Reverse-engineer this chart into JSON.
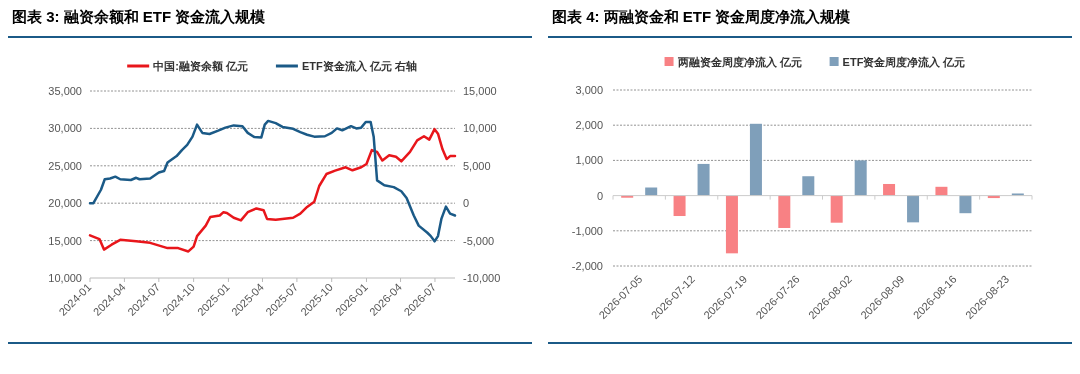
{
  "chart_data": [
    {
      "type": "line",
      "title": "图表 3: 融资余额和 ETF 资金流入规模",
      "legend": "top",
      "grid": "y",
      "xlim": [
        "2024-01-01",
        "2026-08-23"
      ],
      "xticks": [
        "2024-01",
        "2024-04",
        "2024-07",
        "2024-10",
        "2025-01",
        "2025-04",
        "2025-07",
        "2025-10",
        "2026-01",
        "2026-04",
        "2026-07"
      ],
      "ylim": [
        10000,
        35000
      ],
      "yticks": [
        {
          "value": 10000,
          "label": "10,000"
        },
        {
          "value": 15000,
          "label": "15,000"
        },
        {
          "value": 20000,
          "label": "20,000"
        },
        {
          "value": 25000,
          "label": "25,000"
        },
        {
          "value": 30000,
          "label": "30,000"
        },
        {
          "value": 35000,
          "label": "35,000"
        }
      ],
      "y2lim": [
        -10000,
        15000
      ],
      "y2ticks": [
        {
          "value": -10000,
          "label": "-10,000"
        },
        {
          "value": -5000,
          "label": "-5,000"
        },
        {
          "value": 0,
          "label": "0"
        },
        {
          "value": 5000,
          "label": "5,000"
        },
        {
          "value": 10000,
          "label": "10,000"
        },
        {
          "value": 15000,
          "label": "15,000"
        }
      ],
      "series": [
        {
          "name": "中国:融资余额 亿元",
          "color": "#e8161b",
          "x": [
            "2024-01-01",
            "2024-01-26",
            "2024-02-07",
            "2024-02-27",
            "2024-03-21",
            "2024-05-02",
            "2024-06-08",
            "2024-07-24",
            "2024-08-21",
            "2024-09-17",
            "2024-10-01",
            "2024-10-10",
            "2024-11-02",
            "2024-11-14",
            "2024-12-09",
            "2024-12-19",
            "2024-12-28",
            "2025-01-15",
            "2025-02-03",
            "2025-02-21",
            "2025-03-16",
            "2025-04-04",
            "2025-04-13",
            "2025-05-06",
            "2025-06-21",
            "2025-07-10",
            "2025-07-28",
            "2025-08-16",
            "2025-08-29",
            "2025-09-17",
            "2025-10-10",
            "2025-11-07",
            "2025-11-25",
            "2025-12-18",
            "2026-01-01",
            "2026-01-15",
            "2026-01-29",
            "2026-02-12",
            "2026-03-02",
            "2026-03-20",
            "2026-04-03",
            "2026-04-26",
            "2026-05-15",
            "2026-06-02",
            "2026-06-16",
            "2026-06-30",
            "2026-07-09",
            "2026-07-21",
            "2026-08-01",
            "2026-08-10",
            "2026-08-23"
          ],
          "values": [
            15700,
            15200,
            13800,
            14450,
            15100,
            14900,
            14700,
            14000,
            14000,
            13550,
            14200,
            15600,
            17000,
            18150,
            18350,
            18800,
            18700,
            18050,
            17700,
            18800,
            19300,
            19050,
            17900,
            17800,
            18050,
            18600,
            19500,
            20200,
            22300,
            23900,
            24350,
            24800,
            24400,
            24800,
            25250,
            27100,
            26850,
            25700,
            26400,
            26200,
            25600,
            26850,
            28400,
            28950,
            28500,
            29900,
            29300,
            27200,
            25900,
            26300,
            26300
          ]
        },
        {
          "name": "ETF资金流入 亿元 右轴",
          "color": "#1b5a87",
          "axis": "y2",
          "x": [
            "2024-01-01",
            "2024-01-10",
            "2024-01-30",
            "2024-02-09",
            "2024-02-23",
            "2024-03-08",
            "2024-03-21",
            "2024-04-18",
            "2024-05-02",
            "2024-05-11",
            "2024-06-08",
            "2024-07-01",
            "2024-07-15",
            "2024-07-24",
            "2024-08-17",
            "2024-08-31",
            "2024-09-14",
            "2024-09-28",
            "2024-10-10",
            "2024-10-24",
            "2024-11-12",
            "2024-12-05",
            "2024-12-24",
            "2025-01-15",
            "2025-02-07",
            "2025-02-21",
            "2025-03-10",
            "2025-03-29",
            "2025-04-07",
            "2025-04-16",
            "2025-05-06",
            "2025-05-24",
            "2025-06-21",
            "2025-07-10",
            "2025-07-28",
            "2025-08-16",
            "2025-09-13",
            "2025-10-01",
            "2025-10-15",
            "2025-10-29",
            "2025-11-21",
            "2025-12-05",
            "2025-12-18",
            "2025-12-30",
            "2026-01-12",
            "2026-01-20",
            "2026-01-29",
            "2026-02-17",
            "2026-03-14",
            "2026-04-03",
            "2026-04-17",
            "2026-05-06",
            "2026-05-19",
            "2026-06-11",
            "2026-06-20",
            "2026-06-30",
            "2026-07-09",
            "2026-07-18",
            "2026-07-30",
            "2026-08-10",
            "2026-08-23"
          ],
          "values": [
            0,
            0,
            1800,
            3200,
            3300,
            3550,
            3200,
            3100,
            3400,
            3200,
            3300,
            4100,
            4300,
            5450,
            6300,
            7100,
            7800,
            8900,
            10500,
            9400,
            9250,
            9700,
            10100,
            10400,
            10300,
            9400,
            8850,
            8800,
            10500,
            11000,
            10700,
            10200,
            9950,
            9500,
            9150,
            8900,
            8950,
            9400,
            10000,
            9750,
            10300,
            10000,
            10100,
            10850,
            10850,
            8900,
            3050,
            2400,
            2150,
            1600,
            700,
            -1650,
            -3000,
            -3950,
            -4400,
            -5100,
            -4400,
            -2100,
            -450,
            -1400,
            -1650
          ]
        }
      ]
    },
    {
      "type": "bar",
      "title": "图表 4: 两融资金和 ETF 资金周度净流入规模",
      "legend": "top",
      "grid": "y",
      "categories": [
        "2026-07-05",
        "2026-07-12",
        "2026-07-19",
        "2026-07-26",
        "2026-08-02",
        "2026-08-09",
        "2026-08-16",
        "2026-08-23"
      ],
      "ylim": [
        -2000,
        3000
      ],
      "yticks": [
        {
          "value": -2000,
          "label": "-2,000"
        },
        {
          "value": -1000,
          "label": "-1,000"
        },
        {
          "value": 0,
          "label": "0"
        },
        {
          "value": 1000,
          "label": "1,000"
        },
        {
          "value": 2000,
          "label": "2,000"
        },
        {
          "value": 3000,
          "label": "3,000"
        }
      ],
      "series": [
        {
          "name": "两融资金周度净流入 亿元",
          "color": "#f88184",
          "values": [
            -60,
            -580,
            -1640,
            -920,
            -770,
            330,
            250,
            -70
          ]
        },
        {
          "name": "ETF资金周度净流入 亿元",
          "color": "#7f9fba",
          "values": [
            230,
            900,
            2040,
            550,
            1000,
            -760,
            -500,
            60
          ]
        }
      ]
    }
  ]
}
